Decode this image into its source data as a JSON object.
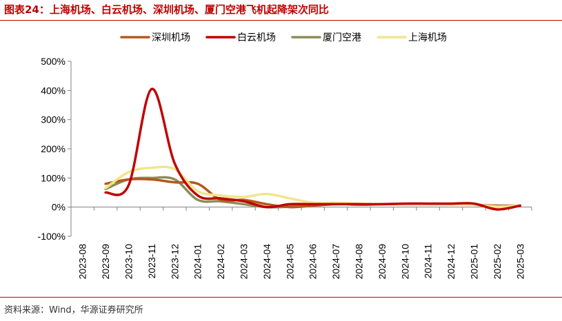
{
  "title": "图表24：上海机场、白云机场、深圳机场、厦门空港飞机起降架次同比",
  "source": "资料来源：Wind，华源证券研究所",
  "chart_data": {
    "type": "line",
    "x": [
      "2023-08",
      "2023-09",
      "2023-10",
      "2023-11",
      "2023-12",
      "2024-01",
      "2024-02",
      "2024-03",
      "2024-04",
      "2024-05",
      "2024-06",
      "2024-07",
      "2024-08",
      "2024-09",
      "2024-10",
      "2024-11",
      "2024-12",
      "2025-01",
      "2025-02",
      "2025-03"
    ],
    "ylim": [
      -100,
      500
    ],
    "yticks": [
      -100,
      0,
      100,
      200,
      300,
      400,
      500
    ],
    "ytick_labels": [
      "-100%",
      "0%",
      "100%",
      "200%",
      "300%",
      "400%",
      "500%"
    ],
    "legend_position": "top",
    "grid": false,
    "series": [
      {
        "name": "深圳机场",
        "color": "#b5581c",
        "values": [
          null,
          80,
          95,
          95,
          85,
          80,
          25,
          25,
          10,
          0,
          5,
          10,
          10,
          10,
          10,
          10,
          10,
          8,
          5,
          5
        ]
      },
      {
        "name": "白云机场",
        "color": "#c00000",
        "values": [
          null,
          50,
          75,
          405,
          150,
          40,
          30,
          20,
          0,
          10,
          10,
          10,
          10,
          10,
          12,
          12,
          12,
          12,
          -8,
          5
        ]
      },
      {
        "name": "厦门空港",
        "color": "#8c8c5a",
        "values": [
          null,
          62,
          95,
          100,
          95,
          25,
          20,
          10,
          0,
          2,
          10,
          12,
          8,
          10,
          10,
          10,
          10,
          8,
          2,
          5
        ]
      },
      {
        "name": "上海机场",
        "color": "#f0e68c",
        "values": [
          null,
          65,
          120,
          135,
          130,
          55,
          40,
          35,
          45,
          30,
          15,
          15,
          12,
          10,
          8,
          8,
          8,
          8,
          2,
          5
        ]
      }
    ]
  }
}
